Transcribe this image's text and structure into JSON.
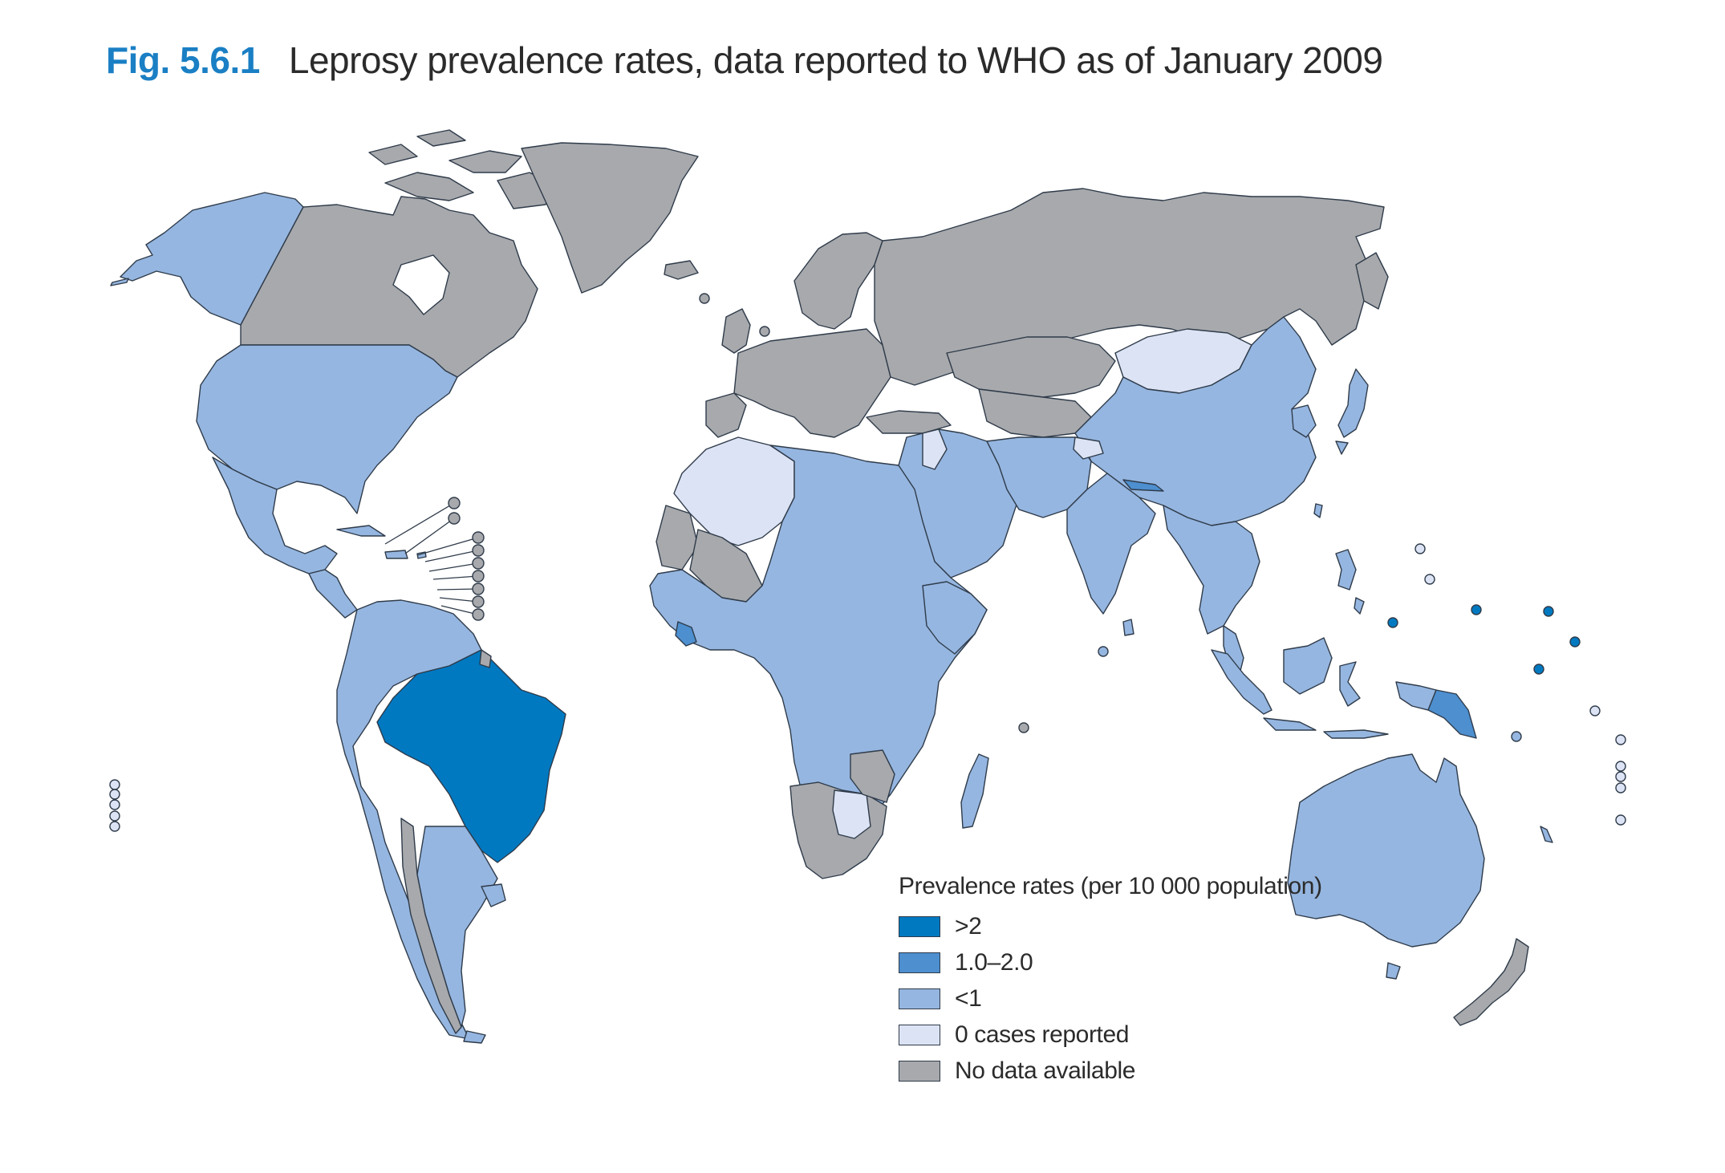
{
  "figure": {
    "number": "Fig. 5.6.1",
    "title": "Leprosy prevalence rates, data reported to WHO as of January 2009"
  },
  "legend": {
    "title": "Prevalence rates (per 10 000 population)",
    "items": [
      {
        "label": ">2",
        "color": "#0079c1"
      },
      {
        "label": "1.0–2.0",
        "color": "#4d8fcf"
      },
      {
        "label": "<1",
        "color": "#95b6e0"
      },
      {
        "label": "0 cases reported",
        "color": "#dbe3f4"
      },
      {
        "label": "No data available",
        "color": "#a7a9ac"
      }
    ]
  },
  "colors": {
    "gt2": "#0079c1",
    "r1to2": "#4d8fcf",
    "lt1": "#95b6e0",
    "zero": "#dbe3f4",
    "nodata": "#a7a9ac",
    "border": "#2f3b4a"
  }
}
